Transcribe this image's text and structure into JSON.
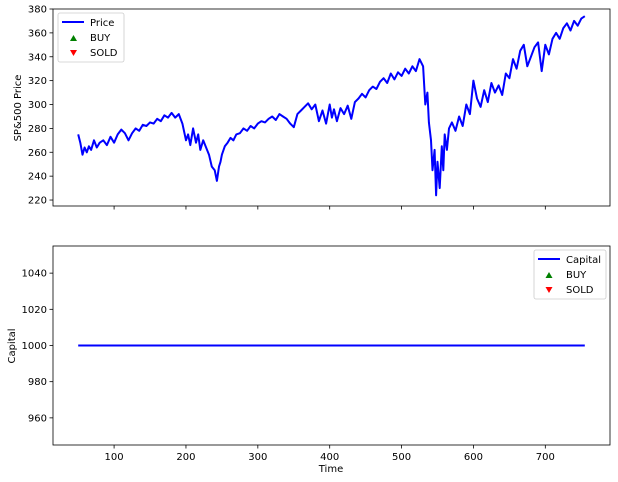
{
  "chart_data": [
    {
      "type": "line",
      "ylabel": "SP&500 Price",
      "xlim": [
        15,
        790
      ],
      "ylim": [
        215,
        380
      ],
      "yticks": [
        220,
        240,
        260,
        280,
        300,
        320,
        340,
        360,
        380
      ],
      "xticks": [
        100,
        200,
        300,
        400,
        500,
        600,
        700
      ],
      "show_xtick_labels": false,
      "legend": {
        "placement": "upper-left",
        "entries": [
          "Price",
          "BUY",
          "SOLD"
        ]
      },
      "series": [
        {
          "name": "Price",
          "color": "#0000ff",
          "x": [
            50,
            53,
            56,
            59,
            62,
            65,
            68,
            72,
            76,
            80,
            85,
            90,
            95,
            100,
            105,
            110,
            115,
            120,
            125,
            130,
            135,
            140,
            145,
            150,
            155,
            160,
            165,
            170,
            175,
            180,
            185,
            190,
            195,
            200,
            203,
            206,
            210,
            214,
            217,
            220,
            224,
            228,
            232,
            236,
            240,
            243,
            246,
            248,
            250,
            254,
            258,
            262,
            266,
            270,
            275,
            280,
            285,
            290,
            295,
            300,
            305,
            310,
            315,
            320,
            325,
            330,
            335,
            340,
            345,
            350,
            355,
            360,
            365,
            370,
            375,
            380,
            385,
            390,
            395,
            400,
            403,
            406,
            410,
            415,
            420,
            425,
            430,
            435,
            440,
            445,
            450,
            455,
            460,
            465,
            470,
            475,
            480,
            485,
            490,
            495,
            500,
            505,
            510,
            515,
            520,
            525,
            530,
            533,
            536,
            538,
            541,
            543,
            546,
            548,
            550,
            553,
            556,
            558,
            560,
            563,
            566,
            570,
            575,
            580,
            585,
            590,
            595,
            600,
            605,
            610,
            615,
            620,
            625,
            630,
            635,
            640,
            645,
            650,
            655,
            660,
            665,
            670,
            675,
            680,
            685,
            690,
            695,
            700,
            705,
            710,
            715,
            720,
            725,
            730,
            735,
            740,
            745,
            750,
            755
          ],
          "y": [
            275,
            268,
            258,
            264,
            260,
            265,
            262,
            270,
            264,
            268,
            270,
            266,
            273,
            268,
            275,
            279,
            276,
            270,
            276,
            280,
            278,
            283,
            282,
            285,
            284,
            288,
            286,
            291,
            289,
            293,
            289,
            292,
            284,
            270,
            275,
            266,
            280,
            268,
            275,
            262,
            270,
            264,
            258,
            248,
            245,
            236,
            248,
            252,
            258,
            265,
            268,
            272,
            270,
            275,
            276,
            280,
            278,
            282,
            280,
            284,
            286,
            285,
            288,
            290,
            287,
            292,
            290,
            288,
            284,
            281,
            292,
            295,
            298,
            301,
            296,
            300,
            286,
            295,
            284,
            300,
            289,
            296,
            286,
            297,
            292,
            299,
            288,
            302,
            305,
            309,
            306,
            312,
            315,
            313,
            319,
            322,
            318,
            326,
            321,
            327,
            324,
            330,
            326,
            332,
            328,
            338,
            332,
            300,
            310,
            285,
            270,
            245,
            262,
            224,
            252,
            230,
            265,
            245,
            275,
            262,
            280,
            285,
            278,
            290,
            282,
            300,
            292,
            320,
            305,
            298,
            312,
            302,
            318,
            310,
            316,
            308,
            326,
            322,
            338,
            330,
            345,
            350,
            332,
            340,
            348,
            352,
            328,
            350,
            342,
            355,
            360,
            355,
            364,
            368,
            362,
            370,
            366,
            372,
            374
          ]
        }
      ]
    },
    {
      "type": "line",
      "xlabel": "Time",
      "ylabel": "Capital",
      "xlim": [
        15,
        790
      ],
      "ylim": [
        945,
        1055
      ],
      "yticks": [
        960,
        980,
        1000,
        1020,
        1040
      ],
      "xticks": [
        100,
        200,
        300,
        400,
        500,
        600,
        700
      ],
      "show_xtick_labels": true,
      "legend": {
        "placement": "upper-right",
        "entries": [
          "Capital",
          "BUY",
          "SOLD"
        ]
      },
      "series": [
        {
          "name": "Capital",
          "color": "#0000ff",
          "x": [
            50,
            755
          ],
          "y": [
            1000,
            1000
          ]
        }
      ]
    }
  ],
  "markers": {
    "buy_color": "#008000",
    "sold_color": "#ff0000",
    "line_color": "#0000ff"
  }
}
